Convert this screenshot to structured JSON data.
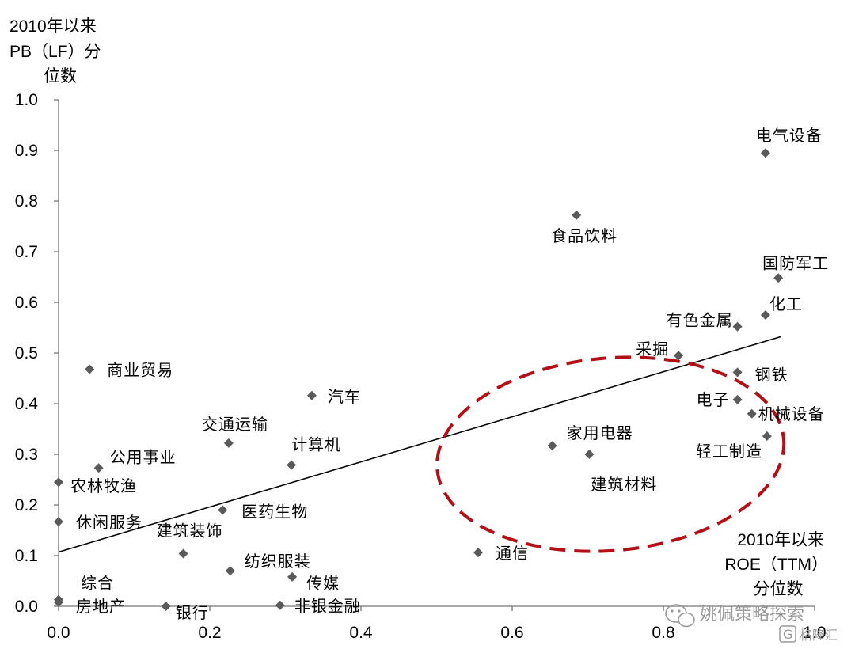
{
  "chart_data": {
    "type": "scatter",
    "title": "",
    "ylabel": [
      "2010年以来",
      "PB（LF）分",
      "位数"
    ],
    "xlabel": [
      "2010年以来",
      "ROE（TTM）",
      "分位数"
    ],
    "xlim": [
      0.0,
      1.0
    ],
    "ylim": [
      0.0,
      1.0
    ],
    "x_ticks": [
      "0.0",
      "0.2",
      "0.4",
      "0.6",
      "0.8",
      "1.0"
    ],
    "y_ticks": [
      "0.0",
      "0.1",
      "0.2",
      "0.3",
      "0.4",
      "0.5",
      "0.6",
      "0.7",
      "0.8",
      "0.9",
      "1.0"
    ],
    "grid": false,
    "points": [
      {
        "label": "电气设备",
        "x": 0.935,
        "y": 0.895
      },
      {
        "label": "食品饮料",
        "x": 0.685,
        "y": 0.772
      },
      {
        "label": "国防军工",
        "x": 0.952,
        "y": 0.648
      },
      {
        "label": "化工",
        "x": 0.935,
        "y": 0.575
      },
      {
        "label": "有色金属",
        "x": 0.898,
        "y": 0.552
      },
      {
        "label": "采掘",
        "x": 0.82,
        "y": 0.495
      },
      {
        "label": "钢铁",
        "x": 0.898,
        "y": 0.462
      },
      {
        "label": "电子",
        "x": 0.898,
        "y": 0.408
      },
      {
        "label": "机械设备",
        "x": 0.917,
        "y": 0.38
      },
      {
        "label": "轻工制造",
        "x": 0.937,
        "y": 0.336
      },
      {
        "label": "家用电器",
        "x": 0.653,
        "y": 0.317
      },
      {
        "label": "建筑材料",
        "x": 0.702,
        "y": 0.3
      },
      {
        "label": "商业贸易",
        "x": 0.041,
        "y": 0.468
      },
      {
        "label": "汽车",
        "x": 0.335,
        "y": 0.416
      },
      {
        "label": "交通运输",
        "x": 0.225,
        "y": 0.322
      },
      {
        "label": "计算机",
        "x": 0.308,
        "y": 0.279
      },
      {
        "label": "公用事业",
        "x": 0.053,
        "y": 0.273
      },
      {
        "label": "农林牧渔",
        "x": 0.0,
        "y": 0.245
      },
      {
        "label": "医药生物",
        "x": 0.217,
        "y": 0.19
      },
      {
        "label": "休闲服务",
        "x": 0.0,
        "y": 0.167
      },
      {
        "label": "建筑装饰",
        "x": 0.165,
        "y": 0.104
      },
      {
        "label": "通信",
        "x": 0.555,
        "y": 0.106
      },
      {
        "label": "纺织服装",
        "x": 0.227,
        "y": 0.07
      },
      {
        "label": "传媒",
        "x": 0.309,
        "y": 0.058
      },
      {
        "label": "综合",
        "x": 0.0,
        "y": 0.013
      },
      {
        "label": "房地产",
        "x": 0.0,
        "y": 0.008
      },
      {
        "label": "银行",
        "x": 0.142,
        "y": 0.0
      },
      {
        "label": "非银金融",
        "x": 0.293,
        "y": 0.002
      }
    ],
    "trendline": {
      "x": [
        0.0,
        0.955
      ],
      "y": [
        0.107,
        0.532
      ]
    },
    "ellipse_highlight": {
      "cx": 0.73,
      "cy": 0.3,
      "rx": 0.23,
      "ry": 0.19
    }
  },
  "watermark": {
    "primary": "姚佩策略探索",
    "secondary": "格隆汇",
    "secondary_mark": "G"
  }
}
